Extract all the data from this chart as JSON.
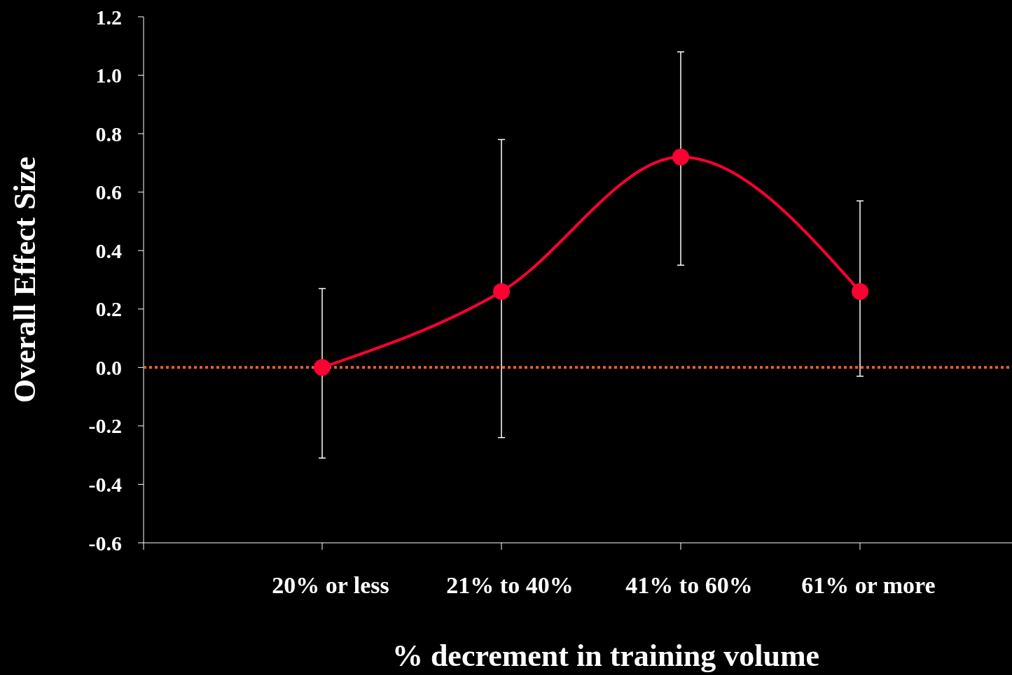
{
  "chart_data": {
    "type": "line",
    "xlabel": "% decrement in training volume",
    "ylabel": "Overall Effect Size",
    "categories": [
      "20% or less",
      "21% to 40%",
      "41% to 60%",
      "61% or more"
    ],
    "series": [
      {
        "color": "#ff0033",
        "values": [
          0.0,
          0.26,
          0.72,
          0.26
        ],
        "errors": [
          [
            -0.31,
            0.27
          ],
          [
            -0.24,
            0.78
          ],
          [
            0.35,
            1.08
          ],
          [
            -0.03,
            0.57
          ]
        ]
      }
    ],
    "ylim": [
      -0.6,
      1.2
    ],
    "yticks": [
      {
        "value": -0.6,
        "label": "-0.6"
      },
      {
        "value": -0.4,
        "label": "-0.4"
      },
      {
        "value": -0.2,
        "label": "-0.2"
      },
      {
        "value": 0,
        "label": "0.0"
      },
      {
        "value": 0.2,
        "label": "0.2"
      },
      {
        "value": 0.4,
        "label": "0.4"
      },
      {
        "value": 0.6,
        "label": "0.6"
      },
      {
        "value": 0.8,
        "label": "0.8"
      },
      {
        "value": 1,
        "label": "1.0"
      },
      {
        "value": 1.2,
        "label": "1.2"
      }
    ],
    "ref_lines": [
      {
        "axis": "y",
        "value": 0,
        "color": "#e8602c",
        "line_style": "dotted"
      }
    ],
    "marker": "circle",
    "grid": false
  }
}
